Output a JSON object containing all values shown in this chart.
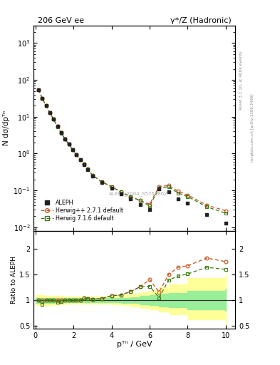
{
  "title_left": "206 GeV ee",
  "title_right": "γ*/Z (Hadronic)",
  "ylabel_main": "N dσ/dpᵀⁿ",
  "ylabel_ratio": "Ratio to ALEPH",
  "xlabel": "pᵀⁿ / GeV",
  "right_label_top": "Rivet 3.1.10, ≥ 400k events",
  "right_label_bot": "mcplots.cern.ch [arXiv:1306.3436]",
  "watermark": "ALEPH_2004_S5765862",
  "aleph_x": [
    0.15,
    0.35,
    0.55,
    0.75,
    0.95,
    1.15,
    1.35,
    1.55,
    1.75,
    1.95,
    2.15,
    2.35,
    2.55,
    2.75,
    3.0,
    3.5,
    4.0,
    4.5,
    5.0,
    5.5,
    6.0,
    6.5,
    7.0,
    7.5,
    8.0,
    9.0,
    10.0
  ],
  "aleph_y": [
    55.0,
    32.0,
    20.0,
    13.0,
    8.5,
    5.5,
    3.7,
    2.5,
    1.8,
    1.3,
    0.95,
    0.68,
    0.5,
    0.37,
    0.25,
    0.165,
    0.115,
    0.082,
    0.058,
    0.042,
    0.03,
    0.11,
    0.09,
    0.058,
    0.045,
    0.022,
    0.013
  ],
  "hw271_x": [
    0.15,
    0.35,
    0.55,
    0.75,
    0.95,
    1.15,
    1.35,
    1.55,
    1.75,
    1.95,
    2.15,
    2.35,
    2.55,
    2.75,
    3.0,
    3.5,
    4.0,
    4.5,
    5.0,
    5.5,
    6.0,
    6.5,
    7.0,
    7.5,
    8.0,
    9.0,
    10.0
  ],
  "hw271_y": [
    55.0,
    32.0,
    20.0,
    13.0,
    8.5,
    5.5,
    3.7,
    2.5,
    1.8,
    1.3,
    0.95,
    0.68,
    0.52,
    0.38,
    0.255,
    0.17,
    0.125,
    0.09,
    0.068,
    0.053,
    0.042,
    0.128,
    0.135,
    0.095,
    0.075,
    0.04,
    0.028
  ],
  "hw716_x": [
    0.15,
    0.35,
    0.55,
    0.75,
    0.95,
    1.15,
    1.35,
    1.55,
    1.75,
    1.95,
    2.15,
    2.35,
    2.55,
    2.75,
    3.0,
    3.5,
    4.0,
    4.5,
    5.0,
    5.5,
    6.0,
    6.5,
    7.0,
    7.5,
    8.0,
    9.0,
    10.0
  ],
  "hw716_y": [
    55.0,
    32.0,
    20.0,
    13.0,
    8.5,
    5.3,
    3.6,
    2.5,
    1.8,
    1.3,
    0.95,
    0.68,
    0.52,
    0.38,
    0.255,
    0.17,
    0.125,
    0.09,
    0.068,
    0.053,
    0.038,
    0.115,
    0.125,
    0.085,
    0.068,
    0.036,
    0.024
  ],
  "ratio_hw271_x": [
    0.15,
    0.35,
    0.55,
    0.75,
    0.95,
    1.15,
    1.35,
    1.55,
    1.75,
    1.95,
    2.15,
    2.35,
    2.55,
    2.75,
    3.0,
    3.5,
    4.0,
    4.5,
    5.0,
    5.5,
    6.0,
    6.5,
    7.0,
    7.5,
    8.0,
    9.0,
    10.0
  ],
  "ratio_hw271_y": [
    1.0,
    1.0,
    1.0,
    1.0,
    1.0,
    1.0,
    1.0,
    1.0,
    1.0,
    1.0,
    1.0,
    1.0,
    1.04,
    1.03,
    1.02,
    1.03,
    1.09,
    1.1,
    1.17,
    1.26,
    1.4,
    1.16,
    1.5,
    1.64,
    1.67,
    1.82,
    1.75
  ],
  "ratio_hw716_x": [
    0.15,
    0.35,
    0.55,
    0.75,
    0.95,
    1.15,
    1.35,
    1.55,
    1.75,
    1.95,
    2.15,
    2.35,
    2.55,
    2.75,
    3.0,
    3.5,
    4.0,
    4.5,
    5.0,
    5.5,
    6.0,
    6.5,
    7.0,
    7.5,
    8.0,
    9.0,
    10.0
  ],
  "ratio_hw716_y": [
    1.0,
    0.92,
    1.0,
    1.0,
    1.0,
    0.96,
    0.97,
    1.0,
    1.0,
    1.0,
    1.0,
    1.0,
    1.04,
    1.03,
    1.02,
    1.03,
    1.09,
    1.1,
    1.17,
    1.26,
    1.27,
    1.05,
    1.39,
    1.47,
    1.51,
    1.64,
    1.6
  ],
  "band_yellow_edges": [
    0.0,
    0.5,
    1.0,
    1.5,
    2.0,
    2.5,
    3.0,
    3.5,
    4.0,
    4.5,
    5.0,
    5.5,
    6.0,
    6.5,
    7.0,
    8.0,
    10.0
  ],
  "band_yellow_lo": [
    0.9,
    0.91,
    0.92,
    0.93,
    0.93,
    0.93,
    0.93,
    0.93,
    0.92,
    0.9,
    0.88,
    0.85,
    0.82,
    0.78,
    0.73,
    0.63,
    0.55
  ],
  "band_yellow_hi": [
    1.1,
    1.09,
    1.08,
    1.07,
    1.07,
    1.07,
    1.07,
    1.07,
    1.08,
    1.1,
    1.12,
    1.15,
    1.18,
    1.25,
    1.3,
    1.43,
    1.5
  ],
  "band_green_edges": [
    0.0,
    0.5,
    1.0,
    1.5,
    2.0,
    2.5,
    3.0,
    3.5,
    4.0,
    4.5,
    5.0,
    5.5,
    6.0,
    6.5,
    7.0,
    8.0,
    10.0
  ],
  "band_green_lo": [
    0.95,
    0.95,
    0.96,
    0.96,
    0.96,
    0.96,
    0.96,
    0.96,
    0.96,
    0.95,
    0.94,
    0.92,
    0.9,
    0.88,
    0.86,
    0.82,
    0.79
  ],
  "band_green_hi": [
    1.05,
    1.05,
    1.04,
    1.04,
    1.04,
    1.04,
    1.04,
    1.04,
    1.04,
    1.05,
    1.06,
    1.08,
    1.1,
    1.12,
    1.14,
    1.18,
    1.22
  ],
  "aleph_color": "#222222",
  "hw271_color": "#c8501a",
  "hw716_color": "#3a7a10",
  "yellow_color": "#ffff99",
  "green_color": "#99ee99",
  "ylim_main": [
    0.008,
    3000
  ],
  "ylim_ratio": [
    0.45,
    2.35
  ],
  "xlim": [
    -0.1,
    10.5
  ],
  "xticks": [
    0,
    2,
    4,
    6,
    8,
    10
  ]
}
